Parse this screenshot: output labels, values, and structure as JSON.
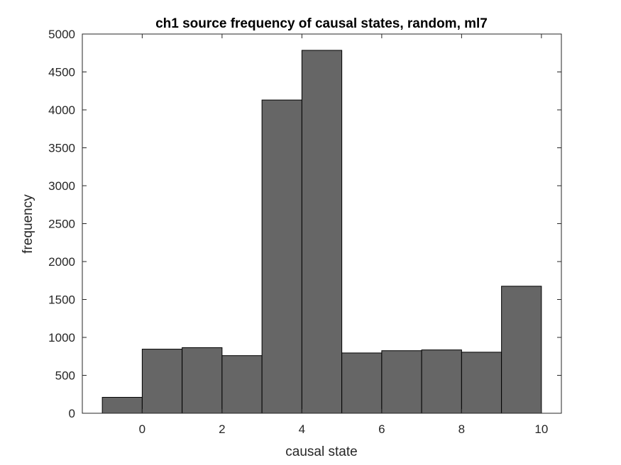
{
  "chart_data": {
    "type": "bar",
    "title": "ch1 source frequency of causal states, random, ml7",
    "xlabel": "causal state",
    "ylabel": "frequency",
    "bin_edges": [
      -1,
      0,
      1,
      2,
      3,
      4,
      5,
      6,
      7,
      8,
      9,
      10
    ],
    "values": [
      210,
      845,
      865,
      760,
      4130,
      4785,
      795,
      825,
      835,
      805,
      1675
    ],
    "xlim": [
      -1.5,
      10.5
    ],
    "ylim": [
      0,
      5000
    ],
    "xticks": [
      0,
      2,
      4,
      6,
      8,
      10
    ],
    "yticks": [
      0,
      500,
      1000,
      1500,
      2000,
      2500,
      3000,
      3500,
      4000,
      4500,
      5000
    ],
    "grid": false,
    "bar_color": "#666666",
    "edge_color": "#000000"
  }
}
